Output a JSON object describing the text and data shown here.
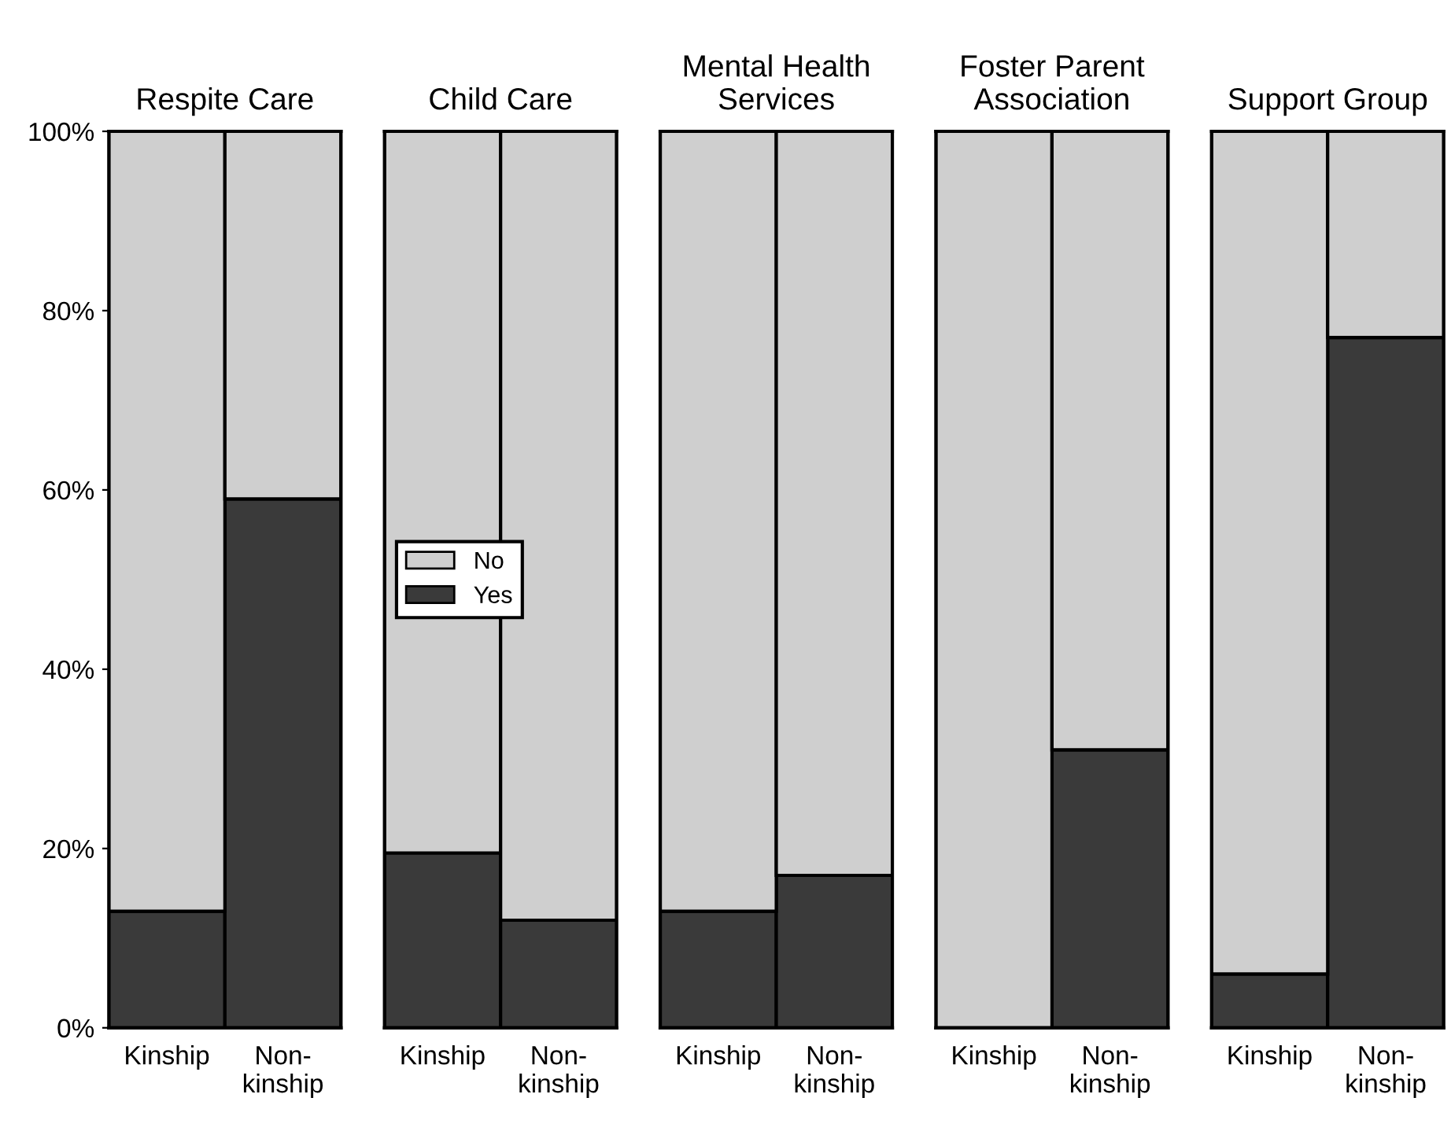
{
  "chart_data": [
    {
      "type": "bar",
      "stacked": true,
      "title": "Respite Care",
      "categories": [
        "Kinship",
        "Non-\nkinship"
      ],
      "series": [
        {
          "color": "#3a3a3a",
          "values": [
            13,
            59
          ]
        },
        {
          "color": "#cfcfcf",
          "values": [
            87,
            41
          ]
        }
      ],
      "ylim": [
        0,
        100
      ],
      "yticks": [
        {
          "value": 0,
          "label": "0%"
        },
        {
          "value": 20,
          "label": "20%"
        },
        {
          "value": 40,
          "label": "40%"
        },
        {
          "value": 60,
          "label": "60%"
        },
        {
          "value": 80,
          "label": "80%"
        },
        {
          "value": 100,
          "label": "100%"
        }
      ],
      "grid": false,
      "legend": false
    },
    {
      "type": "bar",
      "stacked": true,
      "title": "Child Care",
      "categories": [
        "Kinship",
        "Non-\nkinship"
      ],
      "series": [
        {
          "name": "Yes",
          "color": "#3a3a3a",
          "values": [
            19.5,
            12
          ]
        },
        {
          "name": "No",
          "color": "#cfcfcf",
          "values": [
            80.5,
            88
          ]
        }
      ],
      "ylim": [
        0,
        100
      ],
      "tick_labels": "x",
      "grid": false,
      "legend": "center left"
    },
    {
      "type": "bar",
      "stacked": true,
      "title": "Mental Health\nServices",
      "categories": [
        "Kinship",
        "Non-\nkinship"
      ],
      "series": [
        {
          "color": "#3a3a3a",
          "values": [
            13,
            17
          ]
        },
        {
          "color": "#cfcfcf",
          "values": [
            87,
            83
          ]
        }
      ],
      "ylim": [
        0,
        100
      ],
      "tick_labels": "x",
      "grid": false,
      "legend": false
    },
    {
      "type": "bar",
      "stacked": true,
      "title": "Foster Parent\nAssociation",
      "categories": [
        "Kinship",
        "Non-\nkinship"
      ],
      "series": [
        {
          "color": "#3a3a3a",
          "values": [
            0,
            31
          ]
        },
        {
          "color": "#cfcfcf",
          "values": [
            100,
            69
          ]
        }
      ],
      "ylim": [
        0,
        100
      ],
      "tick_labels": "x",
      "grid": false,
      "legend": false
    },
    {
      "type": "bar",
      "stacked": true,
      "title": "Support Group",
      "categories": [
        "Kinship",
        "Non-\nkinship"
      ],
      "series": [
        {
          "color": "#3a3a3a",
          "values": [
            6,
            77
          ]
        },
        {
          "color": "#cfcfcf",
          "values": [
            94,
            23
          ]
        }
      ],
      "ylim": [
        0,
        100
      ],
      "tick_labels": "x",
      "grid": false,
      "legend": false
    }
  ]
}
